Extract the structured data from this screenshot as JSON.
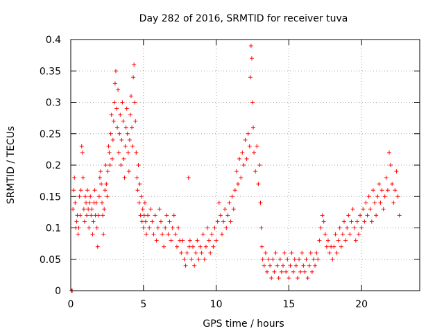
{
  "chart_data": {
    "type": "scatter",
    "title": "Day 282 of 2016, SRMTID for receiver tuva",
    "xlabel": "GPS time / hours",
    "ylabel": "SRMTID / TECUs",
    "xlim": [
      0,
      24
    ],
    "ylim": [
      0,
      0.4
    ],
    "x_ticks": [
      0,
      5,
      10,
      15,
      20
    ],
    "x_tick_labels": [
      "0",
      "5",
      "10",
      "15",
      "20"
    ],
    "y_ticks": [
      0,
      0.05,
      0.1,
      0.15,
      0.2,
      0.25,
      0.3,
      0.35,
      0.4
    ],
    "y_tick_labels": [
      "0",
      "0.05",
      "0.1",
      "0.15",
      "0.2",
      "0.25",
      "0.3",
      "0.35",
      "0.4"
    ],
    "grid": true,
    "marker": "plus",
    "color": "#ff0000",
    "series": [
      {
        "name": "tuva",
        "points": [
          [
            0.05,
            0.0
          ],
          [
            0.1,
            0.0
          ],
          [
            0.15,
            0.13
          ],
          [
            0.2,
            0.16
          ],
          [
            0.25,
            0.18
          ],
          [
            0.3,
            0.14
          ],
          [
            0.35,
            0.1
          ],
          [
            0.4,
            0.11
          ],
          [
            0.45,
            0.12
          ],
          [
            0.5,
            0.09
          ],
          [
            0.55,
            0.1
          ],
          [
            0.6,
            0.15
          ],
          [
            0.65,
            0.12
          ],
          [
            0.7,
            0.16
          ],
          [
            0.75,
            0.23
          ],
          [
            0.8,
            0.22
          ],
          [
            0.85,
            0.18
          ],
          [
            0.9,
            0.13
          ],
          [
            0.95,
            0.11
          ],
          [
            1.0,
            0.15
          ],
          [
            1.05,
            0.14
          ],
          [
            1.1,
            0.12
          ],
          [
            1.15,
            0.16
          ],
          [
            1.2,
            0.13
          ],
          [
            1.25,
            0.1
          ],
          [
            1.3,
            0.14
          ],
          [
            1.35,
            0.15
          ],
          [
            1.4,
            0.12
          ],
          [
            1.45,
            0.13
          ],
          [
            1.5,
            0.09
          ],
          [
            1.55,
            0.11
          ],
          [
            1.6,
            0.14
          ],
          [
            1.65,
            0.16
          ],
          [
            1.7,
            0.12
          ],
          [
            1.75,
            0.14
          ],
          [
            1.8,
            0.1
          ],
          [
            1.85,
            0.07
          ],
          [
            1.9,
            0.12
          ],
          [
            1.95,
            0.15
          ],
          [
            2.0,
            0.18
          ],
          [
            2.05,
            0.19
          ],
          [
            2.1,
            0.17
          ],
          [
            2.15,
            0.14
          ],
          [
            2.2,
            0.12
          ],
          [
            2.25,
            0.09
          ],
          [
            2.3,
            0.13
          ],
          [
            2.35,
            0.16
          ],
          [
            2.4,
            0.2
          ],
          [
            2.45,
            0.17
          ],
          [
            2.5,
            0.15
          ],
          [
            2.55,
            0.19
          ],
          [
            2.6,
            0.23
          ],
          [
            2.65,
            0.22
          ],
          [
            2.7,
            0.2
          ],
          [
            2.75,
            0.25
          ],
          [
            2.8,
            0.28
          ],
          [
            2.85,
            0.21
          ],
          [
            2.9,
            0.24
          ],
          [
            2.95,
            0.27
          ],
          [
            3.0,
            0.3
          ],
          [
            3.05,
            0.33
          ],
          [
            3.1,
            0.35
          ],
          [
            3.15,
            0.29
          ],
          [
            3.2,
            0.26
          ],
          [
            3.25,
            0.32
          ],
          [
            3.3,
            0.22
          ],
          [
            3.35,
            0.25
          ],
          [
            3.4,
            0.28
          ],
          [
            3.45,
            0.2
          ],
          [
            3.5,
            0.24
          ],
          [
            3.55,
            0.3
          ],
          [
            3.6,
            0.27
          ],
          [
            3.65,
            0.21
          ],
          [
            3.7,
            0.18
          ],
          [
            3.75,
            0.23
          ],
          [
            3.8,
            0.26
          ],
          [
            3.85,
            0.29
          ],
          [
            3.9,
            0.25
          ],
          [
            3.95,
            0.22
          ],
          [
            4.0,
            0.19
          ],
          [
            4.05,
            0.24
          ],
          [
            4.1,
            0.28
          ],
          [
            4.15,
            0.31
          ],
          [
            4.2,
            0.26
          ],
          [
            4.25,
            0.23
          ],
          [
            4.3,
            0.34
          ],
          [
            4.35,
            0.36
          ],
          [
            4.4,
            0.3
          ],
          [
            4.45,
            0.27
          ],
          [
            4.5,
            0.22
          ],
          [
            4.55,
            0.18
          ],
          [
            4.6,
            0.16
          ],
          [
            4.65,
            0.2
          ],
          [
            4.7,
            0.14
          ],
          [
            4.75,
            0.17
          ],
          [
            4.8,
            0.12
          ],
          [
            4.85,
            0.15
          ],
          [
            4.9,
            0.11
          ],
          [
            4.95,
            0.13
          ],
          [
            5.0,
            0.1
          ],
          [
            5.05,
            0.12
          ],
          [
            5.1,
            0.14
          ],
          [
            5.15,
            0.11
          ],
          [
            5.2,
            0.09
          ],
          [
            5.3,
            0.12
          ],
          [
            5.4,
            0.1
          ],
          [
            5.5,
            0.13
          ],
          [
            5.6,
            0.11
          ],
          [
            5.7,
            0.09
          ],
          [
            5.8,
            0.12
          ],
          [
            5.9,
            0.08
          ],
          [
            6.0,
            0.1
          ],
          [
            6.1,
            0.13
          ],
          [
            6.2,
            0.11
          ],
          [
            6.3,
            0.09
          ],
          [
            6.4,
            0.07
          ],
          [
            6.5,
            0.1
          ],
          [
            6.6,
            0.12
          ],
          [
            6.7,
            0.09
          ],
          [
            6.8,
            0.11
          ],
          [
            6.9,
            0.08
          ],
          [
            7.0,
            0.1
          ],
          [
            7.1,
            0.12
          ],
          [
            7.2,
            0.09
          ],
          [
            7.3,
            0.07
          ],
          [
            7.4,
            0.1
          ],
          [
            7.5,
            0.08
          ],
          [
            7.6,
            0.06
          ],
          [
            7.7,
            0.08
          ],
          [
            7.8,
            0.05
          ],
          [
            7.9,
            0.04
          ],
          [
            8.0,
            0.06
          ],
          [
            8.1,
            0.18
          ],
          [
            8.15,
            0.07
          ],
          [
            8.2,
            0.08
          ],
          [
            8.3,
            0.05
          ],
          [
            8.4,
            0.07
          ],
          [
            8.5,
            0.04
          ],
          [
            8.6,
            0.06
          ],
          [
            8.7,
            0.08
          ],
          [
            8.8,
            0.05
          ],
          [
            8.9,
            0.07
          ],
          [
            9.0,
            0.06
          ],
          [
            9.1,
            0.09
          ],
          [
            9.2,
            0.05
          ],
          [
            9.3,
            0.07
          ],
          [
            9.4,
            0.1
          ],
          [
            9.5,
            0.08
          ],
          [
            9.6,
            0.06
          ],
          [
            9.7,
            0.09
          ],
          [
            9.8,
            0.07
          ],
          [
            9.9,
            0.1
          ],
          [
            10.0,
            0.08
          ],
          [
            10.1,
            0.11
          ],
          [
            10.2,
            0.14
          ],
          [
            10.3,
            0.12
          ],
          [
            10.4,
            0.09
          ],
          [
            10.5,
            0.11
          ],
          [
            10.6,
            0.13
          ],
          [
            10.7,
            0.1
          ],
          [
            10.8,
            0.12
          ],
          [
            10.9,
            0.14
          ],
          [
            11.0,
            0.11
          ],
          [
            11.1,
            0.15
          ],
          [
            11.2,
            0.13
          ],
          [
            11.3,
            0.16
          ],
          [
            11.4,
            0.19
          ],
          [
            11.5,
            0.17
          ],
          [
            11.6,
            0.21
          ],
          [
            11.7,
            0.18
          ],
          [
            11.8,
            0.22
          ],
          [
            11.9,
            0.2
          ],
          [
            12.0,
            0.24
          ],
          [
            12.1,
            0.21
          ],
          [
            12.2,
            0.25
          ],
          [
            12.3,
            0.23
          ],
          [
            12.35,
            0.34
          ],
          [
            12.4,
            0.39
          ],
          [
            12.45,
            0.37
          ],
          [
            12.5,
            0.3
          ],
          [
            12.55,
            0.26
          ],
          [
            12.6,
            0.22
          ],
          [
            12.7,
            0.19
          ],
          [
            12.8,
            0.23
          ],
          [
            12.9,
            0.17
          ],
          [
            13.0,
            0.2
          ],
          [
            13.05,
            0.14
          ],
          [
            13.1,
            0.1
          ],
          [
            13.15,
            0.07
          ],
          [
            13.2,
            0.05
          ],
          [
            13.3,
            0.04
          ],
          [
            13.4,
            0.06
          ],
          [
            13.5,
            0.03
          ],
          [
            13.6,
            0.05
          ],
          [
            13.7,
            0.04
          ],
          [
            13.8,
            0.02
          ],
          [
            13.9,
            0.05
          ],
          [
            14.0,
            0.03
          ],
          [
            14.1,
            0.06
          ],
          [
            14.2,
            0.04
          ],
          [
            14.3,
            0.02
          ],
          [
            14.4,
            0.05
          ],
          [
            14.5,
            0.03
          ],
          [
            14.6,
            0.04
          ],
          [
            14.7,
            0.06
          ],
          [
            14.8,
            0.03
          ],
          [
            14.9,
            0.05
          ],
          [
            15.0,
            0.02
          ],
          [
            15.1,
            0.04
          ],
          [
            15.2,
            0.06
          ],
          [
            15.3,
            0.03
          ],
          [
            15.4,
            0.05
          ],
          [
            15.5,
            0.04
          ],
          [
            15.6,
            0.02
          ],
          [
            15.7,
            0.05
          ],
          [
            15.8,
            0.03
          ],
          [
            15.9,
            0.06
          ],
          [
            16.0,
            0.04
          ],
          [
            16.1,
            0.03
          ],
          [
            16.2,
            0.05
          ],
          [
            16.3,
            0.02
          ],
          [
            16.4,
            0.04
          ],
          [
            16.5,
            0.06
          ],
          [
            16.6,
            0.03
          ],
          [
            16.7,
            0.05
          ],
          [
            16.8,
            0.04
          ],
          [
            16.9,
            0.06
          ],
          [
            17.0,
            0.05
          ],
          [
            17.1,
            0.08
          ],
          [
            17.2,
            0.1
          ],
          [
            17.3,
            0.12
          ],
          [
            17.4,
            0.11
          ],
          [
            17.5,
            0.09
          ],
          [
            17.6,
            0.07
          ],
          [
            17.7,
            0.08
          ],
          [
            17.8,
            0.06
          ],
          [
            17.9,
            0.07
          ],
          [
            18.0,
            0.05
          ],
          [
            18.1,
            0.07
          ],
          [
            18.2,
            0.09
          ],
          [
            18.3,
            0.06
          ],
          [
            18.4,
            0.08
          ],
          [
            18.5,
            0.1
          ],
          [
            18.6,
            0.07
          ],
          [
            18.7,
            0.09
          ],
          [
            18.8,
            0.11
          ],
          [
            18.9,
            0.08
          ],
          [
            19.0,
            0.1
          ],
          [
            19.1,
            0.12
          ],
          [
            19.2,
            0.09
          ],
          [
            19.3,
            0.11
          ],
          [
            19.4,
            0.13
          ],
          [
            19.5,
            0.1
          ],
          [
            19.6,
            0.08
          ],
          [
            19.7,
            0.11
          ],
          [
            19.8,
            0.09
          ],
          [
            19.9,
            0.12
          ],
          [
            20.0,
            0.1
          ],
          [
            20.1,
            0.13
          ],
          [
            20.2,
            0.11
          ],
          [
            20.3,
            0.14
          ],
          [
            20.4,
            0.12
          ],
          [
            20.5,
            0.15
          ],
          [
            20.6,
            0.13
          ],
          [
            20.7,
            0.11
          ],
          [
            20.8,
            0.16
          ],
          [
            20.9,
            0.14
          ],
          [
            21.0,
            0.12
          ],
          [
            21.1,
            0.15
          ],
          [
            21.2,
            0.17
          ],
          [
            21.3,
            0.14
          ],
          [
            21.4,
            0.16
          ],
          [
            21.5,
            0.13
          ],
          [
            21.6,
            0.15
          ],
          [
            21.7,
            0.18
          ],
          [
            21.8,
            0.16
          ],
          [
            21.9,
            0.22
          ],
          [
            22.0,
            0.2
          ],
          [
            22.1,
            0.17
          ],
          [
            22.2,
            0.14
          ],
          [
            22.3,
            0.16
          ],
          [
            22.4,
            0.19
          ],
          [
            22.5,
            0.15
          ],
          [
            22.6,
            0.12
          ]
        ]
      }
    ]
  }
}
